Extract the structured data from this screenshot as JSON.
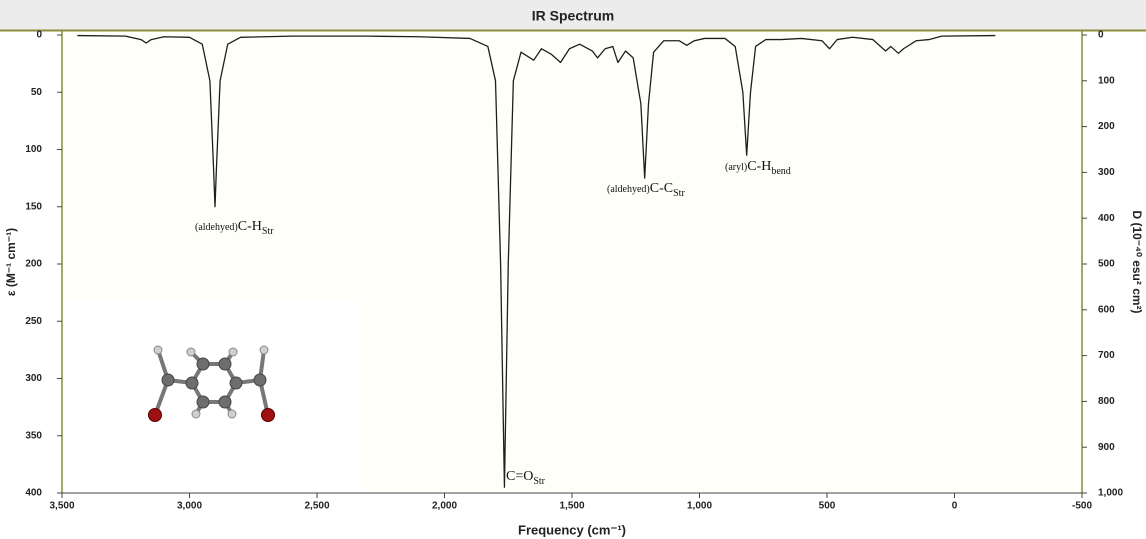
{
  "chart_data": {
    "type": "line",
    "title": "IR Spectrum",
    "xlabel": "Frequency (cm⁻¹)",
    "ylabel": "ε (M⁻¹ cm⁻¹)",
    "y2label": "D (10⁻⁴⁰ esu² cm²)",
    "xlim": [
      3500,
      -500
    ],
    "xticks": [
      {
        "value": 3500,
        "label": "3,500"
      },
      {
        "value": 3000,
        "label": "3,000"
      },
      {
        "value": 2500,
        "label": "2,500"
      },
      {
        "value": 2000,
        "label": "2,000"
      },
      {
        "value": 1500,
        "label": "1,500"
      },
      {
        "value": 1000,
        "label": "1,000"
      },
      500,
      0,
      -500
    ],
    "ylim": [
      0,
      400
    ],
    "y_inverted": true,
    "yticks": [
      0,
      50,
      100,
      150,
      200,
      250,
      300,
      350,
      400
    ],
    "y2lim": [
      0,
      1000
    ],
    "y2ticks": [
      0,
      100,
      200,
      300,
      400,
      500,
      600,
      700,
      800,
      900,
      {
        "value": 1000,
        "label": "1,000"
      }
    ],
    "x": [
      3440,
      3250,
      3190,
      3170,
      3150,
      3100,
      3000,
      2950,
      2920,
      2905,
      2900,
      2895,
      2880,
      2850,
      2800,
      2600,
      2300,
      2100,
      1900,
      1830,
      1800,
      1780,
      1765,
      1750,
      1730,
      1700,
      1650,
      1620,
      1580,
      1545,
      1510,
      1470,
      1420,
      1400,
      1370,
      1340,
      1320,
      1290,
      1260,
      1230,
      1215,
      1200,
      1180,
      1140,
      1080,
      1050,
      1020,
      980,
      900,
      860,
      830,
      815,
      800,
      780,
      740,
      680,
      600,
      520,
      490,
      460,
      400,
      320,
      270,
      250,
      220,
      200,
      150,
      100,
      50,
      -160
    ],
    "series": [
      {
        "color": "#1e1e1e",
        "values": [
          0.5,
          1,
          4,
          7,
          4,
          1.5,
          2,
          8,
          40,
          120,
          150,
          120,
          40,
          8,
          2,
          1,
          1,
          1.5,
          3,
          10,
          40,
          200,
          395,
          200,
          40,
          15,
          22,
          12,
          17,
          24,
          12,
          8,
          14,
          20,
          12,
          10,
          24,
          14,
          20,
          60,
          125,
          60,
          15,
          5,
          5,
          9,
          5,
          3,
          3,
          10,
          50,
          105,
          50,
          10,
          4,
          4,
          3,
          5,
          12,
          4,
          2,
          4,
          14,
          10,
          16,
          12,
          5,
          4,
          1,
          0.5
        ]
      }
    ],
    "annotations": [
      {
        "prefix": "(aldehyed)",
        "text": "C-H",
        "sub": "Str"
      },
      {
        "text": "C=O",
        "sub": "Str"
      },
      {
        "prefix": "(aldehyed)",
        "text": "C-C",
        "sub": "Str"
      },
      {
        "prefix": "(aryl)",
        "text": "C-H",
        "sub": "bend"
      }
    ]
  }
}
